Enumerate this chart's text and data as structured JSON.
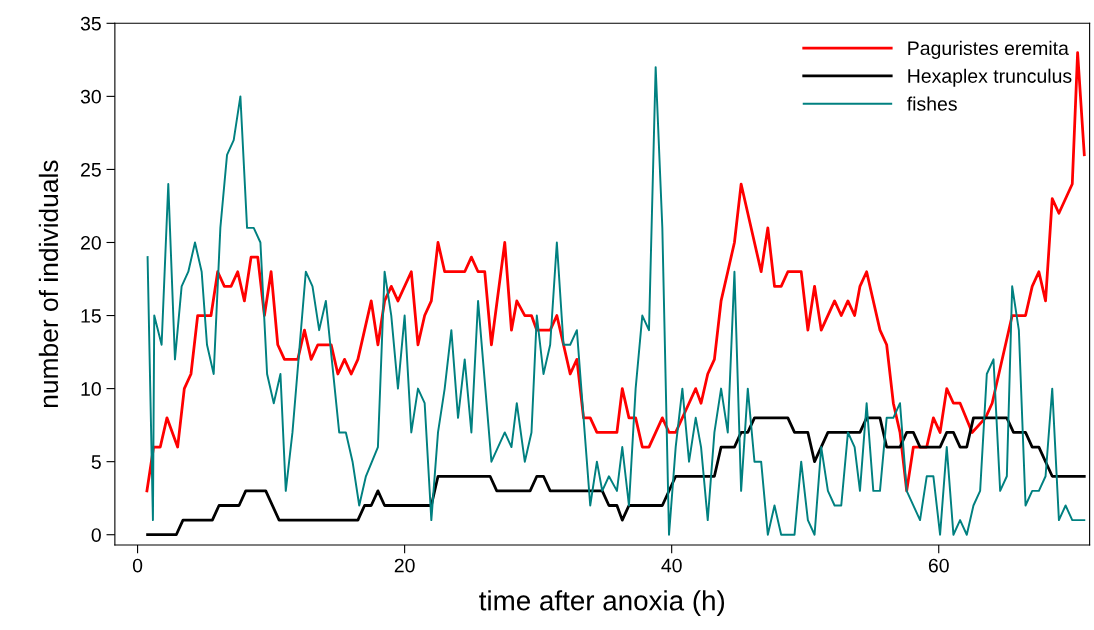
{
  "chart_data": {
    "type": "line",
    "xlabel": "time after anoxia (h)",
    "ylabel": "number of individuals",
    "xlim": [
      -1.7,
      71.3
    ],
    "ylim": [
      -0.7,
      35
    ],
    "xticks": [
      0,
      20,
      40,
      60
    ],
    "yticks": [
      0,
      5,
      10,
      15,
      20,
      25,
      30,
      35
    ],
    "grid": false,
    "legend": "top right",
    "marker": "none",
    "line_style": "solid",
    "series": [
      {
        "name": "Paguristes eremita",
        "color": "#ff0000",
        "x": [
          0.7,
          1.2,
          1.7,
          2.2,
          3.0,
          3.5,
          4.0,
          4.5,
          5.5,
          6.0,
          6.5,
          7.0,
          7.5,
          8.0,
          8.5,
          9.0,
          9.5,
          10.0,
          10.5,
          11.0,
          12.0,
          12.5,
          13.0,
          13.5,
          14.5,
          15.0,
          15.5,
          16.0,
          16.5,
          17.0,
          17.5,
          18.0,
          18.5,
          19.0,
          19.5,
          20.5,
          21.0,
          21.5,
          22.0,
          22.5,
          23.0,
          24.5,
          25.0,
          25.5,
          26.0,
          26.5,
          27.5,
          28.0,
          28.4,
          29.0,
          29.5,
          29.9,
          30.9,
          31.4,
          31.9,
          32.4,
          32.9,
          33.4,
          33.9,
          34.4,
          35.9,
          36.3,
          36.8,
          37.3,
          37.8,
          38.3,
          39.3,
          39.8,
          40.3,
          41.3,
          41.8,
          42.2,
          42.7,
          43.2,
          43.7,
          44.2,
          44.7,
          45.2,
          46.7,
          47.2,
          47.7,
          48.2,
          48.7,
          49.7,
          50.2,
          50.7,
          51.2,
          52.2,
          52.7,
          53.2,
          53.7,
          54.1,
          54.6,
          55.6,
          56.1,
          56.6,
          57.1,
          57.6,
          58.1,
          59.1,
          59.6,
          60.1,
          60.6,
          61.1,
          61.6,
          62.5,
          63.5,
          64.0,
          65.5,
          66.5,
          67.0,
          67.5,
          68.0,
          68.5,
          69.0,
          70.0,
          70.4,
          70.9
        ],
        "values": [
          3,
          6,
          6,
          8,
          6,
          10,
          11,
          15,
          15,
          18,
          17,
          17,
          18,
          16,
          19,
          19,
          15,
          18,
          13,
          12,
          12,
          14,
          12,
          13,
          13,
          11,
          12,
          11,
          12,
          14,
          16,
          13,
          16,
          17,
          16,
          18,
          13,
          15,
          16,
          20,
          18,
          18,
          19,
          18,
          18,
          13,
          20,
          14,
          16,
          15,
          15,
          14,
          14,
          15,
          13,
          11,
          12,
          8,
          8,
          7,
          7,
          10,
          8,
          8,
          6,
          6,
          8,
          7,
          7,
          9,
          10,
          9,
          11,
          12,
          16,
          18,
          20,
          24,
          18,
          21,
          17,
          17,
          18,
          18,
          14,
          17,
          14,
          16,
          15,
          16,
          15,
          17,
          18,
          14,
          13,
          9,
          7,
          3,
          6,
          6,
          8,
          7,
          10,
          9,
          9,
          7,
          8,
          9,
          15,
          15,
          17,
          18,
          16,
          23,
          22,
          24,
          33,
          26
        ]
      },
      {
        "name": "Hexaplex trunculus",
        "color": "#000000",
        "x": [
          0.75,
          2.9,
          3.4,
          5.6,
          6.1,
          7.6,
          8.1,
          9.6,
          10.6,
          16.5,
          17.0,
          17.5,
          18.0,
          18.5,
          22.0,
          22.5,
          26.4,
          26.9,
          29.4,
          29.9,
          30.4,
          30.9,
          34.8,
          35.3,
          35.9,
          36.3,
          36.8,
          39.3,
          40.3,
          43.2,
          43.7,
          44.7,
          45.2,
          45.7,
          46.2,
          48.7,
          49.2,
          50.2,
          50.7,
          51.7,
          54.1,
          54.6,
          55.6,
          56.1,
          57.1,
          57.6,
          58.1,
          58.6,
          60.1,
          60.6,
          61.1,
          61.6,
          62.1,
          62.6,
          65.1,
          65.6,
          66.5,
          67.0,
          67.5,
          68.5,
          70.9
        ],
        "values": [
          0,
          0,
          1,
          1,
          2,
          2,
          3,
          3,
          1,
          1,
          2,
          2,
          3,
          2,
          2,
          4,
          4,
          3,
          3,
          4,
          4,
          3,
          3,
          2,
          2,
          1,
          2,
          2,
          4,
          4,
          6,
          6,
          7,
          7,
          8,
          8,
          7,
          7,
          5,
          7,
          7,
          8,
          8,
          6,
          6,
          7,
          7,
          6,
          6,
          7,
          7,
          6,
          6,
          8,
          8,
          7,
          7,
          6,
          6,
          4,
          4
        ]
      },
      {
        "name": "fishes",
        "color": "#008080",
        "x": [
          0.75,
          1.15,
          1.25,
          1.8,
          2.3,
          2.8,
          3.3,
          3.8,
          4.3,
          4.8,
          5.2,
          5.7,
          6.2,
          6.7,
          7.2,
          7.7,
          8.2,
          8.7,
          9.2,
          9.7,
          10.2,
          10.7,
          11.1,
          11.6,
          12.6,
          13.1,
          13.6,
          14.1,
          15.1,
          15.6,
          16.1,
          16.6,
          17.1,
          18.0,
          18.5,
          19.0,
          19.5,
          20.0,
          20.5,
          21.0,
          21.5,
          22.0,
          22.5,
          23.0,
          23.5,
          24.0,
          24.5,
          25.0,
          25.5,
          26.5,
          27.5,
          28.0,
          28.4,
          29.0,
          29.5,
          29.9,
          30.4,
          30.9,
          31.4,
          31.9,
          32.4,
          32.9,
          33.9,
          34.4,
          34.8,
          35.3,
          35.9,
          36.3,
          36.8,
          37.3,
          37.8,
          38.3,
          38.8,
          39.3,
          39.8,
          40.3,
          40.8,
          41.3,
          41.8,
          42.2,
          42.7,
          43.2,
          43.7,
          44.2,
          44.7,
          45.2,
          45.7,
          46.2,
          46.7,
          47.2,
          47.7,
          48.2,
          49.2,
          49.7,
          50.2,
          50.7,
          51.2,
          51.7,
          52.2,
          52.7,
          53.2,
          53.7,
          54.1,
          54.6,
          55.1,
          55.6,
          56.1,
          56.6,
          57.1,
          57.6,
          58.6,
          59.1,
          59.6,
          60.1,
          60.6,
          61.1,
          61.6,
          62.1,
          62.6,
          63.1,
          63.6,
          64.1,
          64.6,
          65.1,
          65.5,
          66.0,
          66.5,
          67.0,
          67.5,
          68.0,
          68.5,
          69.0,
          69.5,
          70.0,
          70.9
        ],
        "values": [
          19,
          1,
          15,
          13,
          24,
          12,
          17,
          18,
          20,
          18,
          13,
          11,
          21,
          26,
          27,
          30,
          21,
          21,
          20,
          11,
          9,
          11,
          3,
          7,
          18,
          17,
          14,
          16,
          7,
          7,
          5,
          2,
          4,
          6,
          18,
          15,
          10,
          15,
          7,
          10,
          9,
          1,
          7,
          10,
          14,
          8,
          12,
          7,
          16,
          5,
          7,
          6,
          9,
          5,
          7,
          15,
          11,
          13,
          20,
          13,
          13,
          14,
          2,
          5,
          3,
          4,
          3,
          6,
          2,
          10,
          15,
          14,
          32,
          21,
          0,
          6,
          10,
          5,
          8,
          6,
          1,
          7,
          10,
          7,
          18,
          3,
          10,
          5,
          5,
          0,
          2,
          0,
          0,
          5,
          1,
          0,
          6,
          3,
          2,
          2,
          7,
          6,
          3,
          9,
          3,
          3,
          8,
          8,
          9,
          3,
          1,
          4,
          4,
          0,
          6,
          0,
          1,
          0,
          2,
          3,
          11,
          12,
          3,
          4,
          17,
          14,
          2,
          3,
          3,
          4,
          10,
          1,
          2,
          1,
          1
        ]
      }
    ]
  }
}
